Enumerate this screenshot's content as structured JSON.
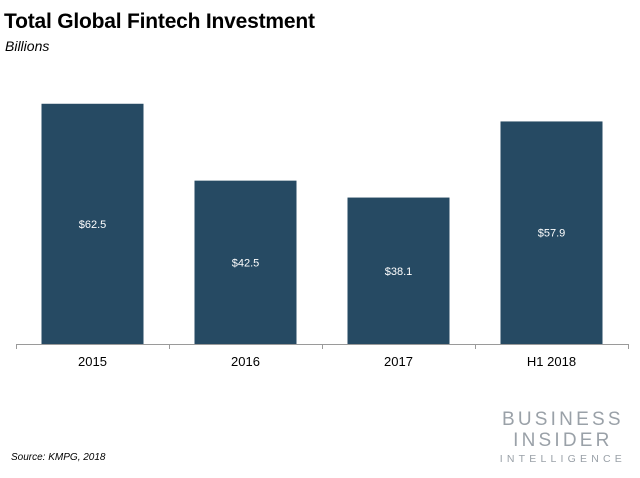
{
  "chart_data": {
    "type": "bar",
    "title": "Total Global Fintech Investment",
    "subtitle": "Billions",
    "categories": [
      "2015",
      "2016",
      "2017",
      "H1 2018"
    ],
    "values": [
      62.5,
      42.5,
      38.1,
      57.9
    ],
    "data_labels": [
      "$62.5",
      "$42.5",
      "$38.1",
      "$57.9"
    ],
    "bar_color": "#264a63",
    "data_label_color": "#ffffff",
    "xlabel": "",
    "ylabel": "",
    "ylim": [
      0,
      64
    ],
    "grid": false,
    "legend": "none"
  },
  "source": "Source: KMPG, 2018",
  "logo": {
    "line1": "BUSINESS",
    "line2": "INSIDER",
    "line3": "INTELLIGENCE"
  }
}
